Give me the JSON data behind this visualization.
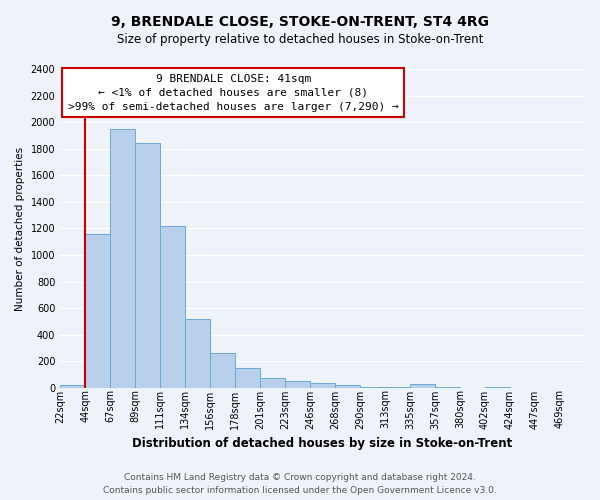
{
  "title": "9, BRENDALE CLOSE, STOKE-ON-TRENT, ST4 4RG",
  "subtitle": "Size of property relative to detached houses in Stoke-on-Trent",
  "xlabel": "Distribution of detached houses by size in Stoke-on-Trent",
  "ylabel": "Number of detached properties",
  "bin_labels": [
    "22sqm",
    "44sqm",
    "67sqm",
    "89sqm",
    "111sqm",
    "134sqm",
    "156sqm",
    "178sqm",
    "201sqm",
    "223sqm",
    "246sqm",
    "268sqm",
    "290sqm",
    "313sqm",
    "335sqm",
    "357sqm",
    "380sqm",
    "402sqm",
    "424sqm",
    "447sqm",
    "469sqm"
  ],
  "bar_heights": [
    25,
    1155,
    1950,
    1840,
    1220,
    520,
    265,
    148,
    78,
    50,
    38,
    22,
    8,
    5,
    28,
    5,
    2,
    8,
    2,
    2,
    2
  ],
  "bar_color": "#b8d0eb",
  "bar_edge_color": "#6aaad4",
  "annotation_box_text": "9 BRENDALE CLOSE: 41sqm\n← <1% of detached houses are smaller (8)\n>99% of semi-detached houses are larger (7,290) →",
  "annotation_box_edge_color": "#cc0000",
  "annotation_box_face_color": "#ffffff",
  "property_line_color": "#cc0000",
  "ylim": [
    0,
    2400
  ],
  "yticks": [
    0,
    200,
    400,
    600,
    800,
    1000,
    1200,
    1400,
    1600,
    1800,
    2000,
    2200,
    2400
  ],
  "footer_line1": "Contains HM Land Registry data © Crown copyright and database right 2024.",
  "footer_line2": "Contains public sector information licensed under the Open Government Licence v3.0.",
  "background_color": "#eef2f9",
  "grid_color": "#ffffff",
  "title_fontsize": 10,
  "subtitle_fontsize": 8.5,
  "xlabel_fontsize": 8.5,
  "ylabel_fontsize": 7.5,
  "tick_fontsize": 7,
  "annotation_fontsize": 8,
  "footer_fontsize": 6.5
}
